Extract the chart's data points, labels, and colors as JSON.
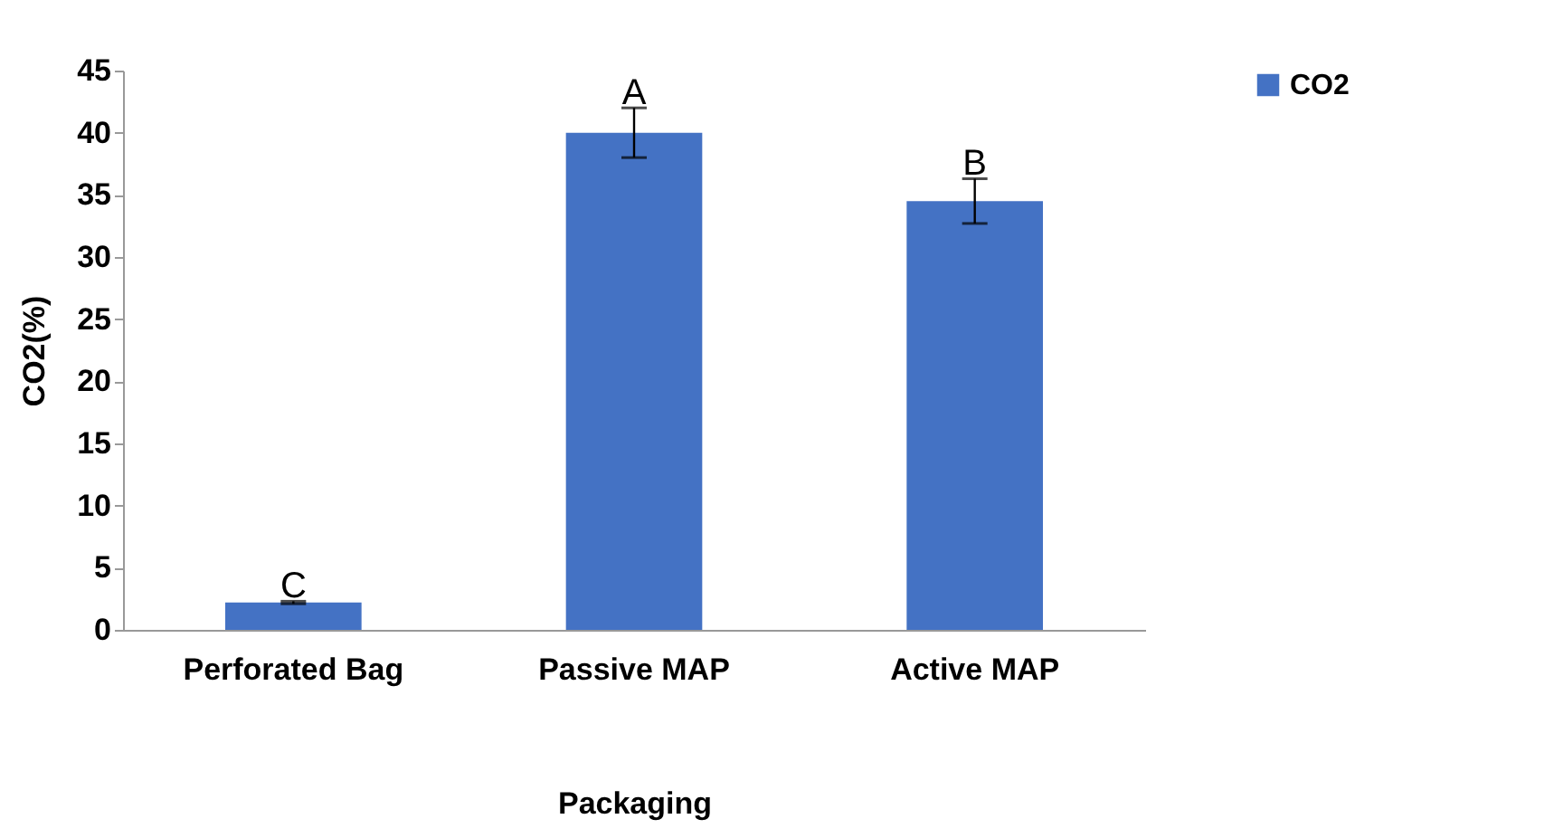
{
  "chart_data": {
    "type": "bar",
    "xlabel": "Packaging",
    "ylabel": "CO2(%)",
    "categories": [
      "Perforated Bag",
      "Passive MAP",
      "Active MAP"
    ],
    "series": [
      {
        "name": "CO2",
        "color": "#4472c4",
        "values": [
          2.2,
          40.0,
          34.5
        ],
        "errors": [
          0.1,
          2.0,
          1.8
        ]
      }
    ],
    "ylim": [
      0,
      45
    ],
    "yticks": [
      0,
      5,
      10,
      15,
      20,
      25,
      30,
      35,
      40,
      45
    ],
    "grid": false,
    "legend": "right",
    "annotations": [
      {
        "text": "C",
        "x": "Perforated Bag",
        "y": 2.3
      },
      {
        "text": "A",
        "x": "Passive MAP",
        "y": 42.0
      },
      {
        "text": "B",
        "x": "Active MAP",
        "y": 36.3
      }
    ]
  }
}
